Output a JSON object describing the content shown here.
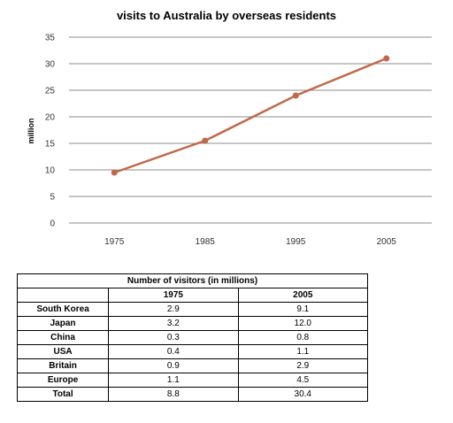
{
  "chart_data": {
    "type": "line",
    "title": "visits to Australia by overseas residents",
    "xlabel": "",
    "ylabel": "million",
    "x": [
      "1975",
      "1985",
      "1995",
      "2005"
    ],
    "series": [
      {
        "values": [
          9.5,
          15.5,
          24,
          31
        ]
      }
    ],
    "ylim": [
      0,
      35
    ],
    "yticks": [
      0,
      5,
      10,
      15,
      20,
      25,
      30,
      35
    ],
    "grid": true,
    "line_color": "#c0694a"
  },
  "table": {
    "caption": "Number of visitors (in millions)",
    "columns": [
      "",
      "1975",
      "2005"
    ],
    "rows": [
      [
        "South Korea",
        "2.9",
        "9.1"
      ],
      [
        "Japan",
        "3.2",
        "12.0"
      ],
      [
        "China",
        "0.3",
        "0.8"
      ],
      [
        "USA",
        "0.4",
        "1.1"
      ],
      [
        "Britain",
        "0.9",
        "2.9"
      ],
      [
        "Europe",
        "1.1",
        "4.5"
      ],
      [
        "Total",
        "8.8",
        "30.4"
      ]
    ]
  }
}
